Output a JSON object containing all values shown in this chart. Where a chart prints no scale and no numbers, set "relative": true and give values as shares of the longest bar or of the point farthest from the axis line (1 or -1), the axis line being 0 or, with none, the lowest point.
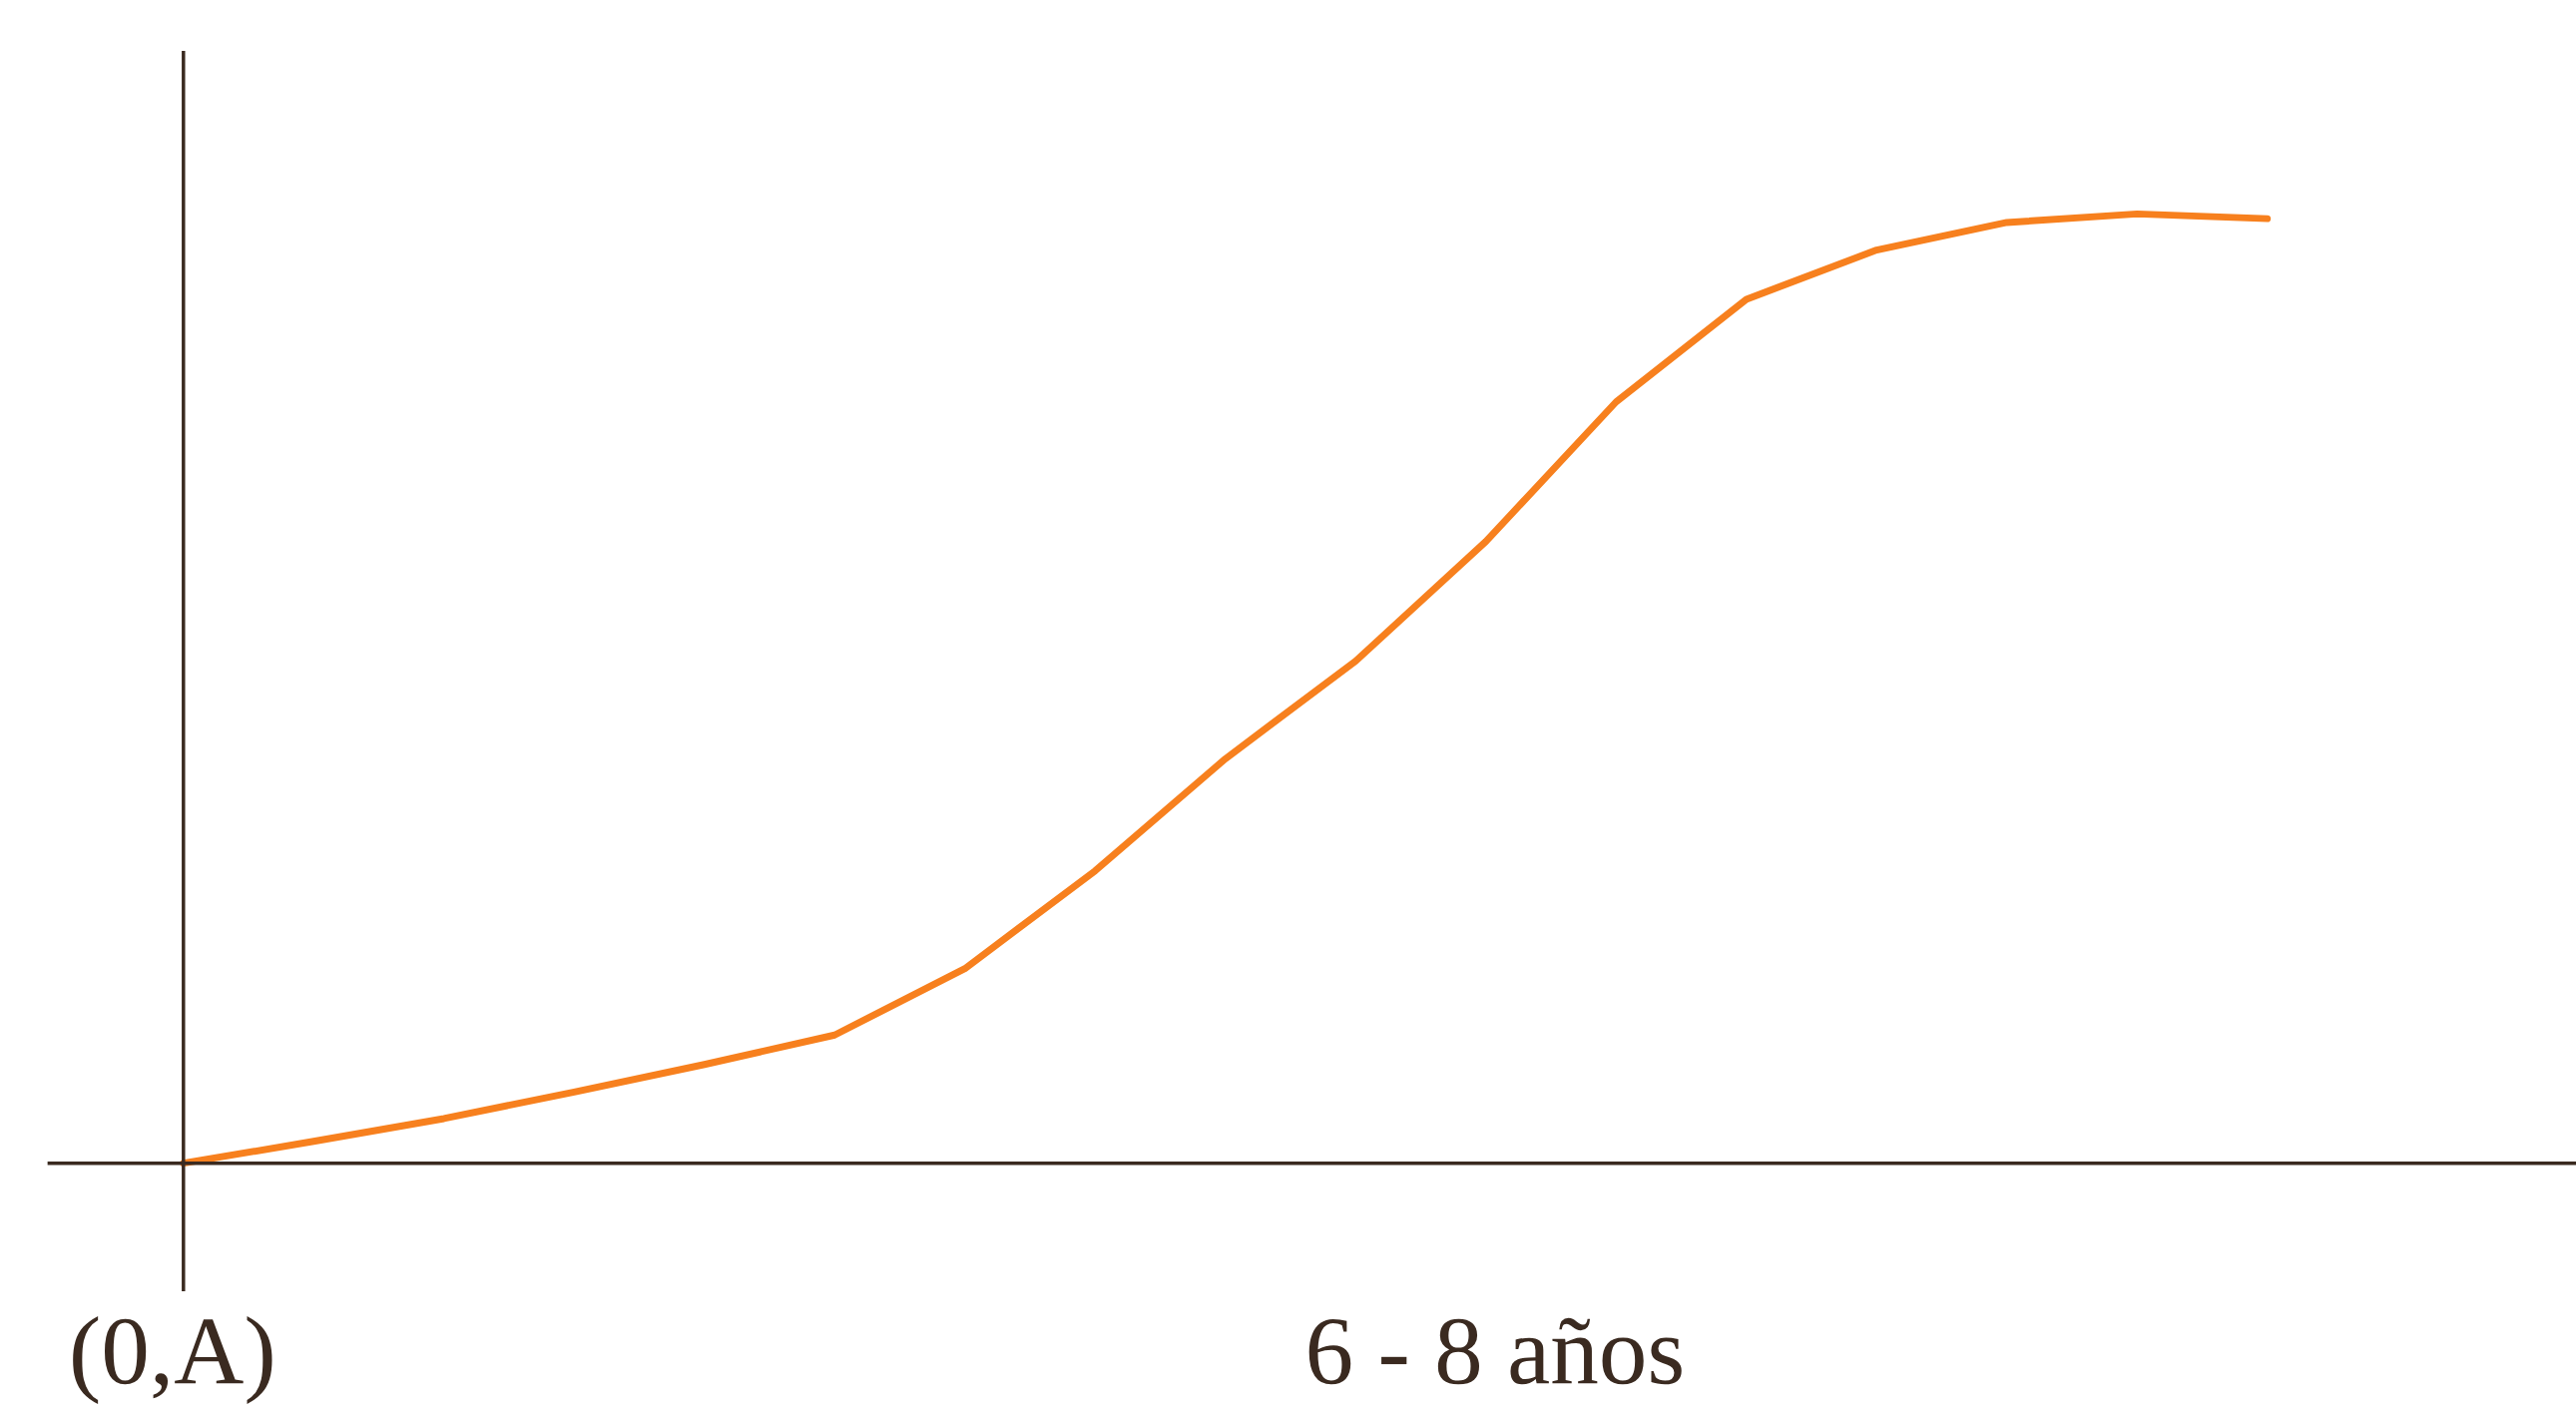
{
  "chart_data": {
    "type": "line",
    "relative": true,
    "xlabel": "6 - 8 años",
    "annotations": [
      "(0,A)"
    ],
    "categories": [
      null,
      null,
      null,
      null,
      null,
      null,
      null,
      null,
      null,
      null,
      null,
      null,
      null,
      null,
      null,
      null,
      null
    ],
    "series": [
      {
        "color": "#f7801e",
        "values": [
          0,
          0.023,
          0.047,
          0.075,
          0.104,
          0.135,
          0.205,
          0.308,
          0.426,
          0.529,
          0.655,
          0.802,
          0.91,
          0.962,
          0.991,
          1.0,
          0.995
        ]
      }
    ],
    "legend": false,
    "tick_labels": false
  }
}
